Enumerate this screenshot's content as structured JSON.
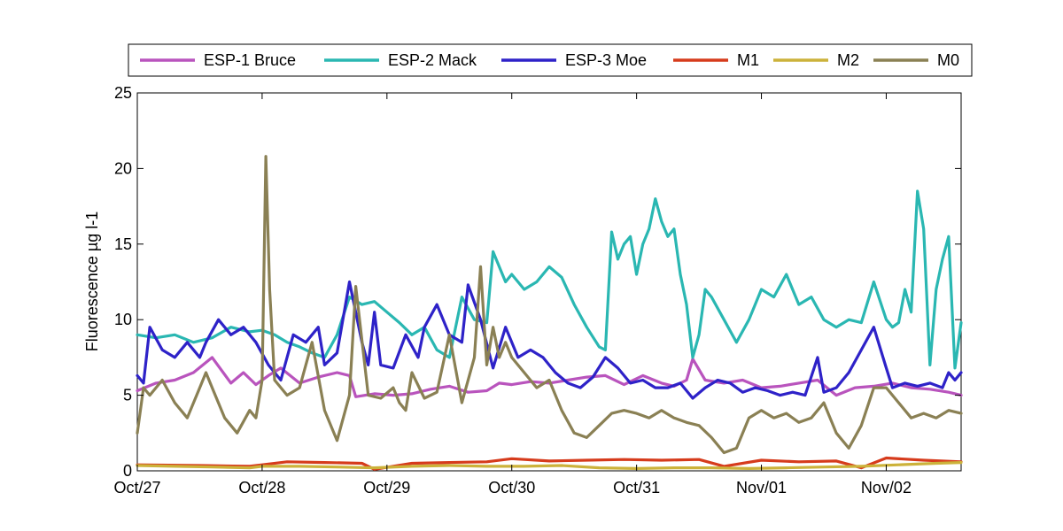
{
  "chart_data": {
    "type": "line",
    "title": "",
    "xlabel": "",
    "ylabel": "Fluorescence µg l-1",
    "ylim": [
      0,
      25
    ],
    "xlim": [
      0,
      6.6
    ],
    "x_tick_values": [
      0,
      1,
      2,
      3,
      4,
      5,
      6
    ],
    "x_tick_labels": [
      "Oct/27",
      "Oct/28",
      "Oct/29",
      "Oct/30",
      "Oct/31",
      "Nov/01",
      "Nov/02"
    ],
    "y_ticks": [
      0,
      5,
      10,
      15,
      20,
      25
    ],
    "grid": false,
    "legend_position": "top",
    "series": [
      {
        "name": "ESP-1 Bruce",
        "color": "#b954bd",
        "x": [
          0,
          0.15,
          0.3,
          0.45,
          0.6,
          0.75,
          0.85,
          0.95,
          1.05,
          1.15,
          1.3,
          1.45,
          1.6,
          1.7,
          1.75,
          1.9,
          2.05,
          2.2,
          2.35,
          2.5,
          2.65,
          2.8,
          2.9,
          3.0,
          3.15,
          3.3,
          3.45,
          3.6,
          3.75,
          3.9,
          4.05,
          4.2,
          4.3,
          4.4,
          4.45,
          4.55,
          4.7,
          4.85,
          5.0,
          5.15,
          5.3,
          5.45,
          5.6,
          5.75,
          5.9,
          6.05,
          6.2,
          6.35,
          6.5,
          6.6
        ],
        "values": [
          5.3,
          5.8,
          6.0,
          6.5,
          7.5,
          5.8,
          6.5,
          5.7,
          6.3,
          6.8,
          5.8,
          6.2,
          6.5,
          6.3,
          4.9,
          5.1,
          5.0,
          5.1,
          5.4,
          5.6,
          5.2,
          5.3,
          5.8,
          5.7,
          5.9,
          5.8,
          6.0,
          6.2,
          6.3,
          5.7,
          6.3,
          5.8,
          5.6,
          6.0,
          7.4,
          6.0,
          5.8,
          6.0,
          5.5,
          5.6,
          5.8,
          6.0,
          5.0,
          5.5,
          5.6,
          5.8,
          5.5,
          5.4,
          5.2,
          5.0
        ]
      },
      {
        "name": "ESP-2 Mack",
        "color": "#2ab7b2",
        "x": [
          0,
          0.15,
          0.3,
          0.45,
          0.6,
          0.75,
          0.9,
          1.0,
          1.1,
          1.2,
          1.3,
          1.4,
          1.5,
          1.6,
          1.7,
          1.8,
          1.9,
          2.0,
          2.1,
          2.2,
          2.3,
          2.4,
          2.5,
          2.6,
          2.7,
          2.8,
          2.85,
          2.9,
          2.95,
          3.0,
          3.1,
          3.2,
          3.3,
          3.4,
          3.5,
          3.6,
          3.7,
          3.75,
          3.8,
          3.85,
          3.9,
          3.95,
          4.0,
          4.05,
          4.1,
          4.15,
          4.2,
          4.25,
          4.3,
          4.35,
          4.4,
          4.45,
          4.5,
          4.55,
          4.6,
          4.7,
          4.8,
          4.9,
          5.0,
          5.1,
          5.2,
          5.3,
          5.4,
          5.5,
          5.6,
          5.7,
          5.8,
          5.9,
          6.0,
          6.05,
          6.1,
          6.15,
          6.2,
          6.25,
          6.3,
          6.35,
          6.4,
          6.45,
          6.5,
          6.55,
          6.6
        ],
        "values": [
          9.0,
          8.8,
          9.0,
          8.5,
          8.8,
          9.5,
          9.2,
          9.3,
          9.0,
          8.5,
          8.2,
          7.8,
          7.5,
          9.0,
          11.5,
          11.0,
          11.2,
          10.5,
          9.8,
          9.0,
          9.5,
          8.0,
          7.5,
          11.5,
          10.0,
          9.8,
          14.5,
          13.5,
          12.5,
          13.0,
          12.0,
          12.5,
          13.5,
          12.8,
          11.0,
          9.5,
          8.2,
          8.0,
          15.8,
          14.0,
          15.0,
          15.5,
          13.0,
          15.0,
          16.0,
          18.0,
          16.5,
          15.5,
          16.0,
          13.0,
          11.0,
          7.5,
          9.0,
          12.0,
          11.5,
          10.0,
          8.5,
          10.0,
          12.0,
          11.5,
          13.0,
          11.0,
          11.5,
          10.0,
          9.5,
          10.0,
          9.8,
          12.5,
          10.0,
          9.5,
          9.8,
          12.0,
          10.5,
          18.5,
          16.0,
          7.0,
          12.0,
          14.0,
          15.5,
          6.8,
          9.8
        ]
      },
      {
        "name": "ESP-3 Moe",
        "color": "#2e22c8",
        "x": [
          0,
          0.05,
          0.1,
          0.2,
          0.3,
          0.4,
          0.5,
          0.55,
          0.65,
          0.75,
          0.85,
          0.95,
          1.05,
          1.15,
          1.25,
          1.35,
          1.45,
          1.5,
          1.6,
          1.7,
          1.8,
          1.85,
          1.9,
          1.95,
          2.05,
          2.15,
          2.25,
          2.3,
          2.4,
          2.5,
          2.6,
          2.65,
          2.75,
          2.85,
          2.95,
          3.05,
          3.15,
          3.25,
          3.35,
          3.45,
          3.55,
          3.65,
          3.75,
          3.85,
          3.95,
          4.05,
          4.15,
          4.25,
          4.35,
          4.45,
          4.55,
          4.65,
          4.75,
          4.85,
          4.95,
          5.05,
          5.15,
          5.25,
          5.35,
          5.45,
          5.5,
          5.6,
          5.7,
          5.8,
          5.9,
          6.0,
          6.05,
          6.15,
          6.25,
          6.35,
          6.45,
          6.5,
          6.55,
          6.6
        ],
        "values": [
          6.3,
          5.8,
          9.5,
          8.0,
          7.5,
          8.5,
          7.5,
          8.5,
          10.0,
          9.0,
          9.5,
          8.5,
          7.0,
          6.0,
          9.0,
          8.5,
          9.5,
          7.0,
          7.8,
          12.5,
          8.5,
          7.0,
          10.5,
          7.0,
          6.8,
          9.0,
          7.5,
          9.5,
          11.0,
          9.0,
          8.5,
          12.3,
          10.0,
          6.8,
          9.5,
          7.5,
          8.0,
          7.5,
          6.5,
          5.8,
          5.5,
          6.2,
          7.5,
          6.8,
          5.8,
          6.0,
          5.5,
          5.5,
          5.8,
          4.8,
          5.5,
          6.0,
          5.8,
          5.2,
          5.5,
          5.3,
          5.0,
          5.2,
          5.0,
          7.5,
          5.2,
          5.5,
          6.5,
          8.0,
          9.5,
          6.8,
          5.5,
          5.8,
          5.6,
          5.8,
          5.5,
          6.5,
          6.0,
          6.5
        ]
      },
      {
        "name": "M1",
        "color": "#d63b1c",
        "x": [
          0,
          0.5,
          0.9,
          1.0,
          1.2,
          1.5,
          1.8,
          1.9,
          2.2,
          2.5,
          2.8,
          3.0,
          3.3,
          3.6,
          3.9,
          4.2,
          4.5,
          4.7,
          5.0,
          5.3,
          5.6,
          5.8,
          6.0,
          6.3,
          6.6
        ],
        "values": [
          0.4,
          0.35,
          0.3,
          0.4,
          0.6,
          0.55,
          0.5,
          0.1,
          0.5,
          0.55,
          0.6,
          0.8,
          0.65,
          0.7,
          0.75,
          0.7,
          0.75,
          0.3,
          0.7,
          0.6,
          0.65,
          0.2,
          0.85,
          0.7,
          0.6
        ]
      },
      {
        "name": "M2",
        "color": "#ccb23a",
        "x": [
          0,
          0.3,
          0.6,
          0.9,
          1.0,
          1.3,
          1.6,
          1.9,
          2.2,
          2.5,
          2.8,
          3.1,
          3.4,
          3.7,
          4.0,
          4.3,
          4.6,
          4.9,
          5.2,
          5.5,
          5.8,
          6.1,
          6.4,
          6.6
        ],
        "values": [
          0.35,
          0.3,
          0.25,
          0.2,
          0.3,
          0.3,
          0.25,
          0.2,
          0.3,
          0.35,
          0.3,
          0.3,
          0.35,
          0.2,
          0.15,
          0.2,
          0.2,
          0.15,
          0.2,
          0.25,
          0.3,
          0.4,
          0.5,
          0.55
        ]
      },
      {
        "name": "M0",
        "color": "#8a8054",
        "x": [
          0,
          0.05,
          0.1,
          0.2,
          0.3,
          0.4,
          0.5,
          0.55,
          0.6,
          0.7,
          0.8,
          0.9,
          0.95,
          1.0,
          1.03,
          1.06,
          1.1,
          1.2,
          1.3,
          1.4,
          1.5,
          1.6,
          1.7,
          1.75,
          1.85,
          1.95,
          2.05,
          2.1,
          2.15,
          2.2,
          2.3,
          2.4,
          2.5,
          2.6,
          2.7,
          2.75,
          2.8,
          2.85,
          2.9,
          2.95,
          3.0,
          3.1,
          3.2,
          3.3,
          3.4,
          3.5,
          3.6,
          3.7,
          3.8,
          3.9,
          4.0,
          4.1,
          4.2,
          4.3,
          4.4,
          4.5,
          4.6,
          4.7,
          4.8,
          4.9,
          5.0,
          5.1,
          5.2,
          5.3,
          5.4,
          5.5,
          5.6,
          5.7,
          5.8,
          5.9,
          6.0,
          6.1,
          6.2,
          6.3,
          6.4,
          6.5,
          6.6
        ],
        "values": [
          2.5,
          5.5,
          5.0,
          6.0,
          4.5,
          3.5,
          5.5,
          6.5,
          5.5,
          3.5,
          2.5,
          4.0,
          3.5,
          6.0,
          20.8,
          12.0,
          6.0,
          5.0,
          5.5,
          8.5,
          4.0,
          2.0,
          5.0,
          12.2,
          5.0,
          4.8,
          5.5,
          4.5,
          4.0,
          6.5,
          4.8,
          5.2,
          9.0,
          4.5,
          7.5,
          13.5,
          7.0,
          9.5,
          7.5,
          8.5,
          7.5,
          6.5,
          5.5,
          6.0,
          4.0,
          2.5,
          2.2,
          3.0,
          3.8,
          4.0,
          3.8,
          3.5,
          4.0,
          3.5,
          3.2,
          3.0,
          2.2,
          1.2,
          1.5,
          3.5,
          4.0,
          3.5,
          3.8,
          3.2,
          3.5,
          4.5,
          2.5,
          1.5,
          3.0,
          5.5,
          5.5,
          4.5,
          3.5,
          3.8,
          3.5,
          4.0,
          3.8
        ]
      }
    ]
  }
}
